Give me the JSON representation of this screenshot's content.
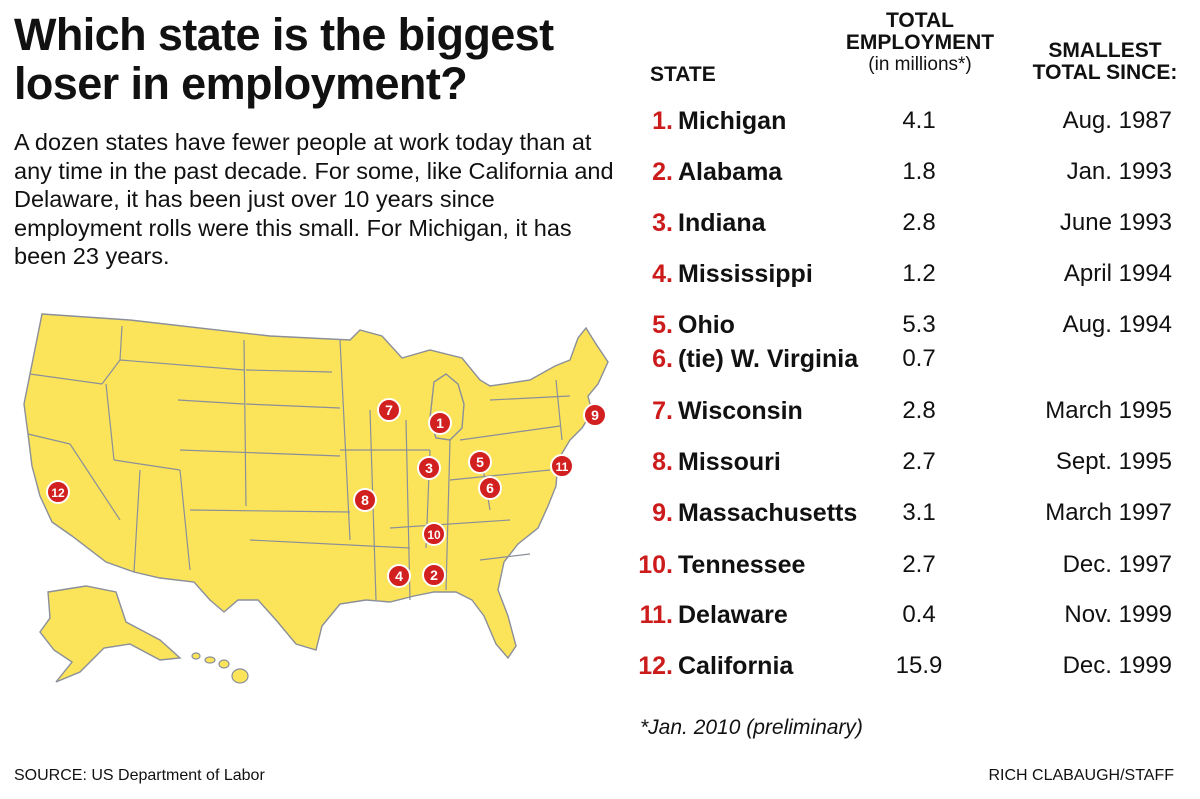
{
  "title": "Which state is the biggest loser in employment?",
  "intro": "A dozen states have fewer people at work today than at any time in the past decade. For some, like California and Delaware, it has been just over 10 years since employment rolls were this small. For Michigan, it has been 23 years.",
  "colors": {
    "map_fill": "#fce45a",
    "map_border": "#8a8f99",
    "marker": "#d21f1f",
    "rank": "#cc1b1b"
  },
  "chart_data": {
    "type": "table",
    "columns": {
      "state": "STATE",
      "employment_line1": "TOTAL",
      "employment_line2": "EMPLOYMENT",
      "employment_sub": "(in millions*)",
      "since_line1": "SMALLEST",
      "since_line2": "TOTAL SINCE:"
    },
    "rows": [
      {
        "rank": "1.",
        "state": "Michigan",
        "employment": "4.1",
        "since": "Aug. 1987"
      },
      {
        "rank": "2.",
        "state": "Alabama",
        "employment": "1.8",
        "since": "Jan. 1993"
      },
      {
        "rank": "3.",
        "state": "Indiana",
        "employment": "2.8",
        "since": "June 1993"
      },
      {
        "rank": "4.",
        "state": "Mississippi",
        "employment": "1.2",
        "since": "April 1994"
      },
      {
        "rank": "5.",
        "state": "Ohio",
        "employment": "5.3",
        "since": "Aug. 1994"
      },
      {
        "rank": "6.",
        "state": "(tie) W. Virginia",
        "employment": "0.7",
        "since": ""
      },
      {
        "rank": "7.",
        "state": "Wisconsin",
        "employment": "2.8",
        "since": "March 1995"
      },
      {
        "rank": "8.",
        "state": "Missouri",
        "employment": "2.7",
        "since": "Sept. 1995"
      },
      {
        "rank": "9.",
        "state": "Massachusetts",
        "employment": "3.1",
        "since": "March 1997"
      },
      {
        "rank": "10.",
        "state": "Tennessee",
        "employment": "2.7",
        "since": "Dec. 1997"
      },
      {
        "rank": "11.",
        "state": "Delaware",
        "employment": "0.4",
        "since": "Nov. 1999"
      },
      {
        "rank": "12.",
        "state": "California",
        "employment": "15.9",
        "since": "Dec. 1999"
      }
    ],
    "map_markers": [
      "1",
      "2",
      "3",
      "4",
      "5",
      "6",
      "7",
      "8",
      "9",
      "10",
      "11",
      "12"
    ]
  },
  "footnote": "*Jan. 2010 (preliminary)",
  "source": "SOURCE: US Department of Labor",
  "credit": "RICH CLABAUGH/STAFF"
}
